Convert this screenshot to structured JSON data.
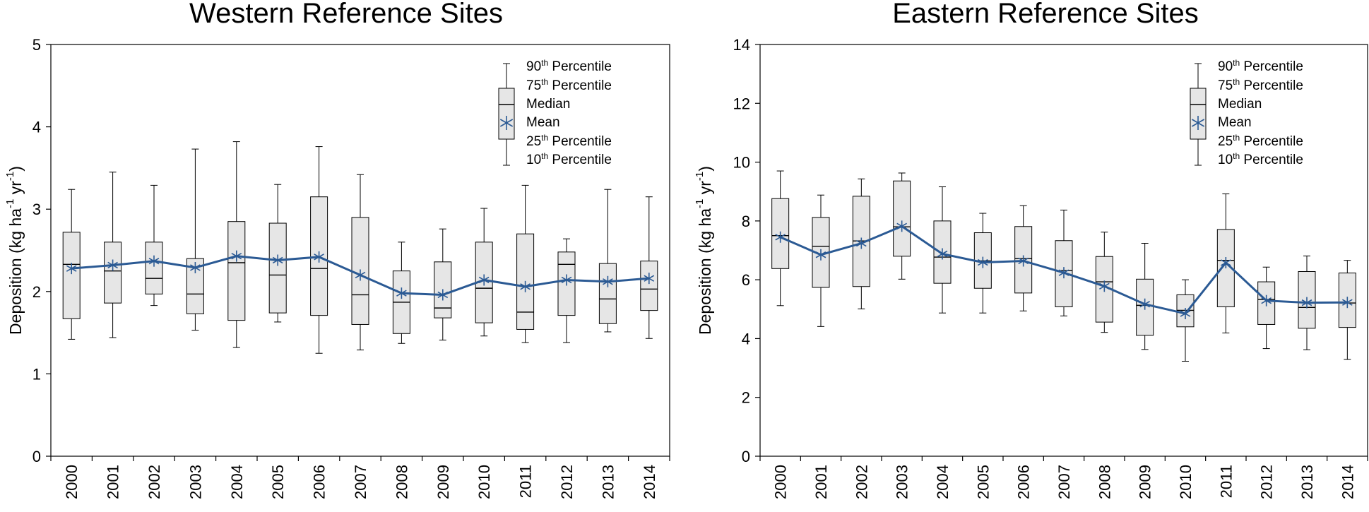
{
  "chart_data": [
    {
      "type": "box",
      "title": "Western Reference Sites",
      "ylabel_parts": [
        "Deposition (kg ha",
        "-1",
        " yr",
        "-1",
        ")"
      ],
      "xlabel": "",
      "ylim": [
        0,
        5
      ],
      "yticks": [
        "0",
        "1",
        "2",
        "3",
        "4",
        "5"
      ],
      "grid": false,
      "legend_position": "top-right",
      "categories": [
        "2000",
        "2001",
        "2002",
        "2003",
        "2004",
        "2005",
        "2006",
        "2007",
        "2008",
        "2009",
        "2010",
        "2011",
        "2012",
        "2013",
        "2014"
      ],
      "p10": [
        1.42,
        1.44,
        1.83,
        1.53,
        1.32,
        1.63,
        1.25,
        1.29,
        1.37,
        1.41,
        1.46,
        1.38,
        1.38,
        1.51,
        1.43
      ],
      "p25": [
        1.67,
        1.86,
        1.97,
        1.73,
        1.65,
        1.74,
        1.71,
        1.6,
        1.49,
        1.68,
        1.62,
        1.54,
        1.71,
        1.61,
        1.77
      ],
      "median": [
        2.33,
        2.25,
        2.16,
        1.97,
        2.35,
        2.2,
        2.28,
        1.96,
        1.87,
        1.8,
        2.04,
        1.75,
        2.33,
        1.91,
        2.03
      ],
      "p75": [
        2.72,
        2.6,
        2.6,
        2.4,
        2.85,
        2.83,
        3.15,
        2.9,
        2.25,
        2.36,
        2.6,
        2.7,
        2.48,
        2.34,
        2.37
      ],
      "p90": [
        3.24,
        3.45,
        3.29,
        3.73,
        3.82,
        3.3,
        3.76,
        3.42,
        2.6,
        2.76,
        3.01,
        3.29,
        2.64,
        3.24,
        3.15
      ],
      "mean": [
        2.28,
        2.32,
        2.37,
        2.29,
        2.43,
        2.38,
        2.42,
        2.2,
        1.98,
        1.96,
        2.14,
        2.06,
        2.14,
        2.12,
        2.16
      ]
    },
    {
      "type": "box",
      "title": "Eastern Reference Sites",
      "ylabel_parts": [
        "Deposition (kg ha",
        "-1",
        " yr",
        "-1",
        ")"
      ],
      "xlabel": "",
      "ylim": [
        0,
        14
      ],
      "yticks": [
        "0",
        "2",
        "4",
        "6",
        "8",
        "10",
        "12",
        "14"
      ],
      "grid": false,
      "legend_position": "top-right",
      "categories": [
        "2000",
        "2001",
        "2002",
        "2003",
        "2004",
        "2005",
        "2006",
        "2007",
        "2008",
        "2009",
        "2010",
        "2011",
        "2012",
        "2013",
        "2014"
      ],
      "p10": [
        5.12,
        4.41,
        5.01,
        6.02,
        4.87,
        4.87,
        4.94,
        4.77,
        4.21,
        3.63,
        3.23,
        4.19,
        3.66,
        3.62,
        3.29
      ],
      "p25": [
        6.38,
        5.74,
        5.77,
        6.8,
        5.88,
        5.71,
        5.55,
        5.08,
        4.56,
        4.11,
        4.4,
        5.08,
        4.48,
        4.35,
        4.38
      ],
      "median": [
        7.5,
        7.14,
        7.32,
        7.8,
        6.77,
        6.64,
        6.72,
        6.31,
        5.93,
        5.13,
        4.96,
        6.66,
        5.33,
        5.06,
        5.21
      ],
      "p75": [
        8.76,
        8.12,
        8.84,
        9.36,
        8.0,
        7.6,
        7.81,
        7.33,
        6.79,
        6.02,
        5.49,
        7.71,
        5.93,
        6.28,
        6.23
      ],
      "p90": [
        9.7,
        8.88,
        9.43,
        9.63,
        9.16,
        8.26,
        8.52,
        8.37,
        7.62,
        7.24,
        6.0,
        8.92,
        6.43,
        6.81,
        6.66
      ],
      "mean": [
        7.45,
        6.85,
        7.24,
        7.82,
        6.88,
        6.59,
        6.64,
        6.24,
        5.78,
        5.17,
        4.85,
        6.58,
        5.29,
        5.22,
        5.23
      ]
    }
  ],
  "legend": {
    "items": [
      {
        "base": "90",
        "sup": "th",
        "rest": " Percentile"
      },
      {
        "base": "75",
        "sup": "th",
        "rest": " Percentile"
      },
      {
        "base": "Median",
        "sup": "",
        "rest": ""
      },
      {
        "base": "Mean",
        "sup": "",
        "rest": ""
      },
      {
        "base": "25",
        "sup": "th",
        "rest": " Percentile"
      },
      {
        "base": "10",
        "sup": "th",
        "rest": " Percentile"
      }
    ]
  },
  "colors": {
    "box_fill": "#e6e6e6",
    "mean_line": "#2b5a94",
    "axis": "#000000"
  }
}
